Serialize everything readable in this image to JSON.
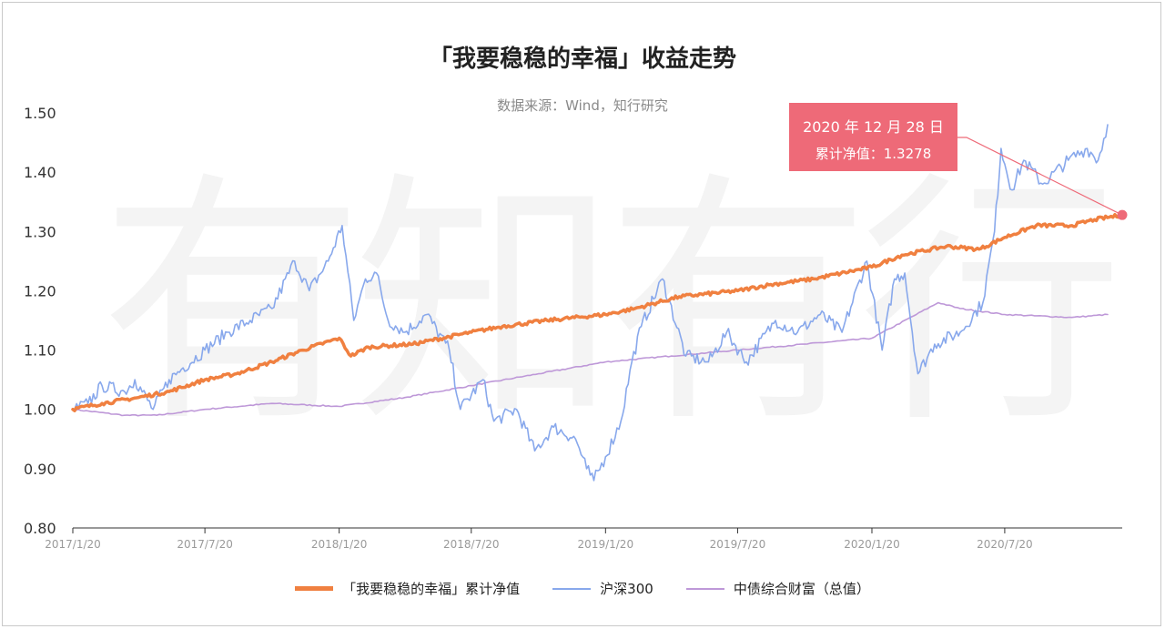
{
  "title": "「我要稳稳的幸福」收益走势",
  "subtitle": "数据来源：Wind，知行研究",
  "watermark": "有知有行",
  "annotation": {
    "date": "2020 年 12 月 28  日",
    "value": "累计净值：1.3278"
  },
  "colors": {
    "fund": "#f08040",
    "hs300": "#88a8ec",
    "bond": "#be98d8",
    "annotation": "#ee6a78",
    "axis": "#333333"
  },
  "chart_data": {
    "type": "line",
    "title": "「我要稳稳的幸福」收益走势",
    "source": "数据来源：Wind，知行研究",
    "ylim": [
      0.8,
      1.5
    ],
    "xlim": [
      "2017-01-20",
      "2020-12-28"
    ],
    "yticks": [
      "0.80",
      "0.90",
      "1.00",
      "1.10",
      "1.20",
      "1.30",
      "1.40",
      "1.50"
    ],
    "xticks": [
      "2017/1/20",
      "2017/7/20",
      "2018/1/20",
      "2018/7/20",
      "2019/1/20",
      "2019/7/20",
      "2020/1/20",
      "2020/7/20"
    ],
    "grid": false,
    "legend_position": "bottom",
    "series": [
      {
        "name": "「我要稳稳的幸福」累计净值",
        "color": "#f08040",
        "points": [
          [
            "2017-01-20",
            1.0
          ],
          [
            "2017-03-01",
            1.01
          ],
          [
            "2017-04-20",
            1.02
          ],
          [
            "2017-06-01",
            1.03
          ],
          [
            "2017-07-20",
            1.05
          ],
          [
            "2017-09-01",
            1.06
          ],
          [
            "2017-10-20",
            1.08
          ],
          [
            "2017-12-01",
            1.1
          ],
          [
            "2018-01-20",
            1.12
          ],
          [
            "2018-02-05",
            1.09
          ],
          [
            "2018-03-01",
            1.105
          ],
          [
            "2018-05-01",
            1.11
          ],
          [
            "2018-07-20",
            1.13
          ],
          [
            "2018-09-01",
            1.14
          ],
          [
            "2018-11-01",
            1.15
          ],
          [
            "2019-01-20",
            1.16
          ],
          [
            "2019-03-01",
            1.17
          ],
          [
            "2019-05-01",
            1.19
          ],
          [
            "2019-07-20",
            1.2
          ],
          [
            "2019-09-01",
            1.21
          ],
          [
            "2019-11-01",
            1.22
          ],
          [
            "2020-01-20",
            1.24
          ],
          [
            "2020-03-01",
            1.26
          ],
          [
            "2020-05-01",
            1.275
          ],
          [
            "2020-06-15",
            1.27
          ],
          [
            "2020-07-20",
            1.29
          ],
          [
            "2020-09-01",
            1.31
          ],
          [
            "2020-10-20",
            1.31
          ],
          [
            "2020-11-20",
            1.32
          ],
          [
            "2020-12-28",
            1.3278
          ]
        ]
      },
      {
        "name": "沪深300",
        "color": "#88a8ec",
        "points": [
          [
            "2017-01-20",
            1.0
          ],
          [
            "2017-02-10",
            1.01
          ],
          [
            "2017-03-01",
            1.04
          ],
          [
            "2017-04-01",
            1.03
          ],
          [
            "2017-04-15",
            1.05
          ],
          [
            "2017-05-10",
            1.0
          ],
          [
            "2017-06-01",
            1.05
          ],
          [
            "2017-06-20",
            1.07
          ],
          [
            "2017-07-20",
            1.1
          ],
          [
            "2017-08-20",
            1.13
          ],
          [
            "2017-09-20",
            1.15
          ],
          [
            "2017-10-20",
            1.17
          ],
          [
            "2017-11-20",
            1.25
          ],
          [
            "2017-12-10",
            1.2
          ],
          [
            "2018-01-05",
            1.25
          ],
          [
            "2018-01-24",
            1.31
          ],
          [
            "2018-02-09",
            1.15
          ],
          [
            "2018-02-25",
            1.22
          ],
          [
            "2018-03-12",
            1.23
          ],
          [
            "2018-03-28",
            1.15
          ],
          [
            "2018-04-20",
            1.13
          ],
          [
            "2018-05-20",
            1.16
          ],
          [
            "2018-06-20",
            1.1
          ],
          [
            "2018-07-05",
            1.0
          ],
          [
            "2018-08-05",
            1.05
          ],
          [
            "2018-08-20",
            0.98
          ],
          [
            "2018-09-20",
            1.0
          ],
          [
            "2018-10-15",
            0.93
          ],
          [
            "2018-11-10",
            0.97
          ],
          [
            "2018-12-10",
            0.95
          ],
          [
            "2018-12-25",
            0.9
          ],
          [
            "2019-01-04",
            0.88
          ],
          [
            "2019-01-20",
            0.92
          ],
          [
            "2019-02-10",
            0.98
          ],
          [
            "2019-02-25",
            1.08
          ],
          [
            "2019-03-10",
            1.14
          ],
          [
            "2019-04-08",
            1.22
          ],
          [
            "2019-05-10",
            1.09
          ],
          [
            "2019-06-10",
            1.08
          ],
          [
            "2019-07-05",
            1.13
          ],
          [
            "2019-08-01",
            1.08
          ],
          [
            "2019-09-10",
            1.15
          ],
          [
            "2019-10-10",
            1.13
          ],
          [
            "2019-11-10",
            1.16
          ],
          [
            "2019-12-10",
            1.13
          ],
          [
            "2020-01-13",
            1.25
          ],
          [
            "2020-02-03",
            1.1
          ],
          [
            "2020-02-20",
            1.22
          ],
          [
            "2020-03-05",
            1.23
          ],
          [
            "2020-03-23",
            1.06
          ],
          [
            "2020-04-15",
            1.11
          ],
          [
            "2020-05-20",
            1.13
          ],
          [
            "2020-06-20",
            1.18
          ],
          [
            "2020-07-06",
            1.3
          ],
          [
            "2020-07-15",
            1.44
          ],
          [
            "2020-07-30",
            1.37
          ],
          [
            "2020-08-15",
            1.42
          ],
          [
            "2020-09-10",
            1.38
          ],
          [
            "2020-10-15",
            1.42
          ],
          [
            "2020-11-10",
            1.44
          ],
          [
            "2020-11-25",
            1.42
          ],
          [
            "2020-12-08",
            1.48
          ]
        ]
      },
      {
        "name": "中债综合财富（总值）",
        "color": "#be98d8",
        "points": [
          [
            "2017-01-20",
            1.0
          ],
          [
            "2017-04-01",
            0.99
          ],
          [
            "2017-05-15",
            0.99
          ],
          [
            "2017-07-20",
            1.0
          ],
          [
            "2017-10-20",
            1.01
          ],
          [
            "2018-01-20",
            1.005
          ],
          [
            "2018-04-20",
            1.02
          ],
          [
            "2018-07-20",
            1.04
          ],
          [
            "2018-10-20",
            1.06
          ],
          [
            "2019-01-20",
            1.08
          ],
          [
            "2019-04-20",
            1.09
          ],
          [
            "2019-07-20",
            1.1
          ],
          [
            "2019-10-20",
            1.11
          ],
          [
            "2020-01-20",
            1.12
          ],
          [
            "2020-04-20",
            1.18
          ],
          [
            "2020-05-20",
            1.17
          ],
          [
            "2020-07-20",
            1.16
          ],
          [
            "2020-10-20",
            1.155
          ],
          [
            "2020-12-08",
            1.16
          ]
        ]
      }
    ]
  }
}
